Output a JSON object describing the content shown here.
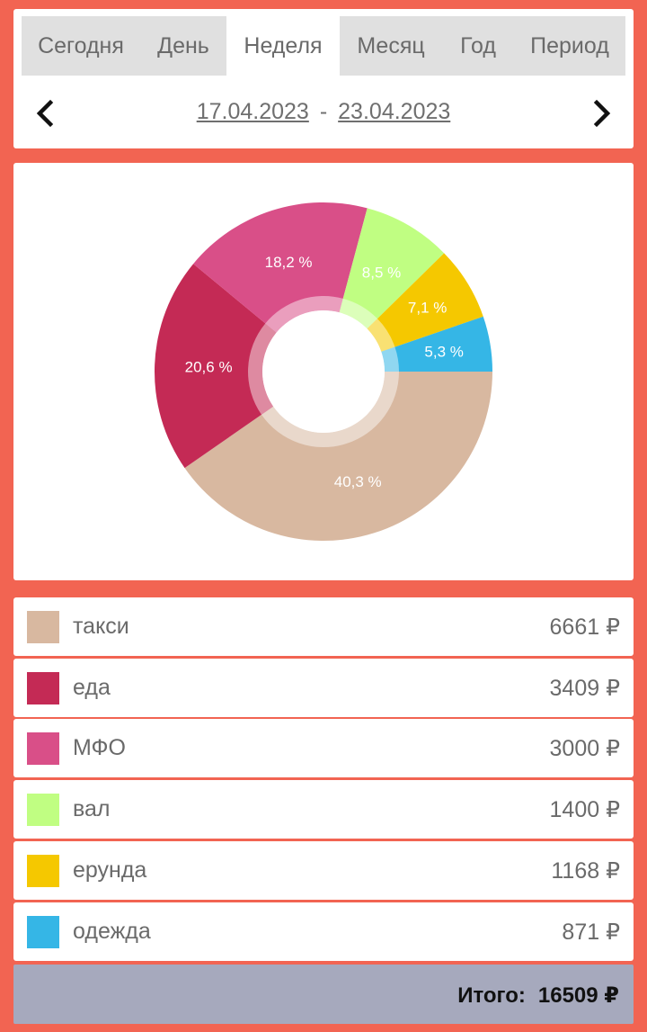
{
  "tabs": [
    {
      "label": "Сегодня",
      "active": false
    },
    {
      "label": "День",
      "active": false
    },
    {
      "label": "Неделя",
      "active": true
    },
    {
      "label": "Месяц",
      "active": false
    },
    {
      "label": "Год",
      "active": false
    },
    {
      "label": "Период",
      "active": false
    }
  ],
  "date_range": {
    "start": "17.04.2023",
    "separator": "-",
    "end": "23.04.2023",
    "prev_icon": "chevron-left-icon",
    "next_icon": "chevron-right-icon"
  },
  "chart_data": {
    "type": "pie",
    "donut": true,
    "slices": [
      {
        "name": "такси",
        "value": 6661,
        "label": "40,3 %",
        "color": "#d8b8a0"
      },
      {
        "name": "еда",
        "value": 3409,
        "label": "20,6 %",
        "color": "#c42a55"
      },
      {
        "name": "МФО",
        "value": 3000,
        "label": "18,2 %",
        "color": "#d94f88"
      },
      {
        "name": "вал",
        "value": 1400,
        "label": "8,5 %",
        "color": "#c0fe82"
      },
      {
        "name": "ерунда",
        "value": 1168,
        "label": "7,1 %",
        "color": "#f5c800"
      },
      {
        "name": "одежда",
        "value": 871,
        "label": "5,3 %",
        "color": "#35b6e6"
      }
    ]
  },
  "categories": [
    {
      "name": "такси",
      "amount": "6661 ₽",
      "color": "#d8b8a0"
    },
    {
      "name": "еда",
      "amount": "3409 ₽",
      "color": "#c42a55"
    },
    {
      "name": "МФО",
      "amount": "3000 ₽",
      "color": "#d94f88"
    },
    {
      "name": "вал",
      "amount": "1400 ₽",
      "color": "#c0fe82"
    },
    {
      "name": "ерунда",
      "amount": "1168 ₽",
      "color": "#f5c800"
    },
    {
      "name": "одежда",
      "amount": "871 ₽",
      "color": "#35b6e6"
    }
  ],
  "total": {
    "label": "Итого:",
    "value": "16509 ₽"
  },
  "colors": {
    "background": "#f26452",
    "total_bar": "#a6a9bd",
    "tab_bar": "#e0e0e0"
  }
}
